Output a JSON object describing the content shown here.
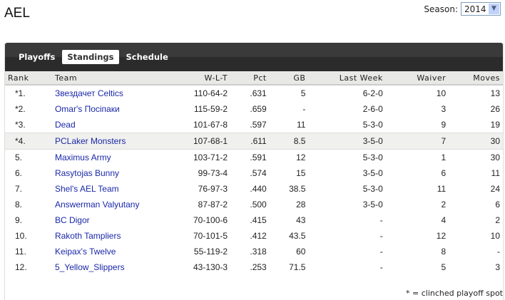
{
  "title": "AEL",
  "season": {
    "label": "Season:",
    "value": "2014"
  },
  "tabs": [
    {
      "label": "Playoffs"
    },
    {
      "label": "Standings"
    },
    {
      "label": "Schedule"
    }
  ],
  "columns": [
    "Rank",
    "Team",
    "W-L-T",
    "Pct",
    "GB",
    "Last Week",
    "Waiver",
    "Moves"
  ],
  "rows": [
    [
      "*1.",
      "Звездачет Celtics",
      "110-64-2",
      ".631",
      "5",
      "6-2-0",
      "10",
      "13"
    ],
    [
      "*2.",
      "Omar's Посіпаки",
      "115-59-2",
      ".659",
      "-",
      "2-6-0",
      "3",
      "26"
    ],
    [
      "*3.",
      "Dead",
      "101-67-8",
      ".597",
      "11",
      "5-3-0",
      "9",
      "19"
    ],
    [
      "*4.",
      "PCLaker Monsters",
      "107-68-1",
      ".611",
      "8.5",
      "3-5-0",
      "7",
      "30"
    ],
    [
      "5.",
      "Maximus Army",
      "103-71-2",
      ".591",
      "12",
      "5-3-0",
      "1",
      "30"
    ],
    [
      "6.",
      "Rasytojas Bunny",
      "99-73-4",
      ".574",
      "15",
      "3-5-0",
      "6",
      "11"
    ],
    [
      "7.",
      "Shel's AEL Team",
      "76-97-3",
      ".440",
      "38.5",
      "5-3-0",
      "11",
      "24"
    ],
    [
      "8.",
      "Answerman Valyutany",
      "87-87-2",
      ".500",
      "28",
      "3-5-0",
      "2",
      "6"
    ],
    [
      "9.",
      "BC Digor",
      "70-100-6",
      ".415",
      "43",
      "-",
      "4",
      "2"
    ],
    [
      "10.",
      "Rakoth Tampliers",
      "70-101-5",
      ".412",
      "43.5",
      "-",
      "12",
      "10"
    ],
    [
      "11.",
      "Keipax's Twelve",
      "55-119-2",
      ".318",
      "60",
      "-",
      "8",
      "-"
    ],
    [
      "12.",
      "5_Yellow_Slippers",
      "43-130-3",
      ".253",
      "71.5",
      "-",
      "5",
      "3"
    ]
  ],
  "footnote": "* = clinched playoff spot"
}
